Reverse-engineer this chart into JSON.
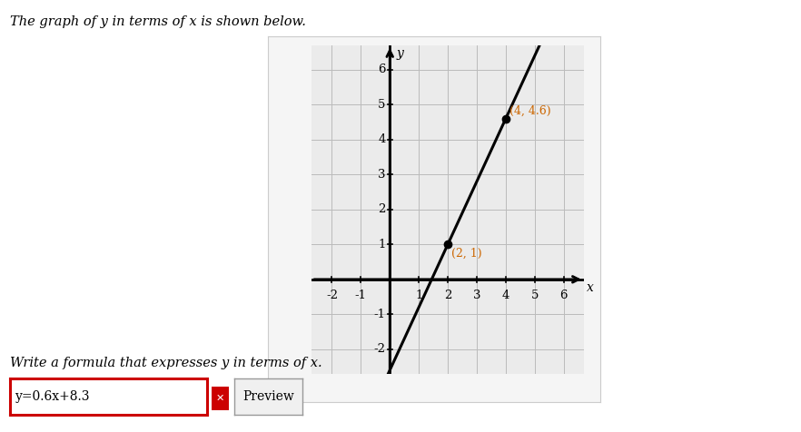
{
  "title_text": "The graph of y in terms of x is shown below.",
  "title_color": "#000000",
  "title_fontsize": 10.5,
  "graph_bg_color": "#ebebeb",
  "grid_color": "#bbbbbb",
  "axis_color": "#000000",
  "line_color": "#000000",
  "line_width": 2.2,
  "point1": [
    2,
    1
  ],
  "point2": [
    4,
    4.6
  ],
  "point_color": "#000000",
  "point_size": 6,
  "slope": 1.8,
  "intercept": -2.6,
  "x_min": -2.7,
  "x_max": 6.7,
  "y_min": -2.7,
  "y_max": 6.7,
  "x_ticks": [
    -2,
    -1,
    1,
    2,
    3,
    4,
    5,
    6
  ],
  "y_ticks": [
    -2,
    -1,
    1,
    2,
    3,
    4,
    5,
    6
  ],
  "tick_fontsize": 9.5,
  "xlabel": "x",
  "ylabel": "y",
  "axis_label_fontsize": 10,
  "formula_text": "y=0.6x+8.3",
  "formula_fontsize": 10,
  "write_formula_text": "Write a formula that expresses y in terms of x.",
  "write_formula_fontsize": 10.5,
  "preview_text": "Preview",
  "input_border_color": "#cc0000",
  "point1_label": "(2, 1)",
  "point2_label": "(4, 4.6)",
  "annotation_color": "#cc6600",
  "annotation_fontsize": 9,
  "panel_bg": "#f5f5f5",
  "panel_border": "#cccccc"
}
